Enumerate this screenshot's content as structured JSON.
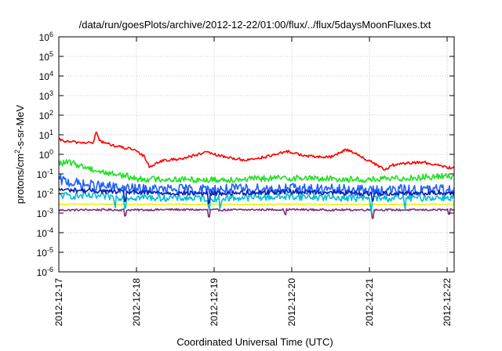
{
  "chart_data": {
    "type": "line",
    "title": "/data/run/goesPlots/archive/2012-12-22/01:00/flux/../flux/5daysMoonFluxes.txt",
    "xlabel": "Coordinated Universal Time (UTC)",
    "ylabel": {
      "base": "protons/cm",
      "sup": "2",
      "rest": "-s-sr-MeV"
    },
    "x_ticks": [
      "2012-12-17",
      "2012-12-18",
      "2012-12-19",
      "2012-12-20",
      "2012-12-21",
      "2012-12-22"
    ],
    "y_scale": "log",
    "ylim_exp": [
      -6,
      6
    ],
    "y_tick_exponents": [
      6,
      5,
      4,
      3,
      2,
      1,
      0,
      -1,
      -2,
      -3,
      -4,
      -5,
      -6
    ],
    "y_tick_base": "10",
    "grid": true,
    "series": [
      {
        "color": "#7f2f7f",
        "level": -2.83,
        "noise": 0.05,
        "spikes": [
          [
            0.86,
            -0.3
          ],
          [
            1.93,
            -0.35
          ],
          [
            2.91,
            -0.25
          ],
          [
            4.04,
            -0.4
          ],
          [
            5.02,
            -0.25
          ]
        ],
        "anchors": [
          [
            0.0,
            -2.85
          ],
          [
            0.5,
            -2.83
          ],
          [
            1.0,
            -2.84
          ],
          [
            1.5,
            -2.82
          ],
          [
            2.0,
            -2.84
          ],
          [
            2.5,
            -2.83
          ],
          [
            3.0,
            -2.82
          ],
          [
            3.5,
            -2.84
          ],
          [
            4.0,
            -2.83
          ],
          [
            4.5,
            -2.84
          ],
          [
            5.06,
            -2.83
          ]
        ]
      },
      {
        "color": "#f2f20a",
        "level": -2.55,
        "noise": 0.03,
        "spikes": [],
        "anchors": [
          [
            0.0,
            -2.55
          ],
          [
            1.0,
            -2.55
          ],
          [
            2.0,
            -2.56
          ],
          [
            3.0,
            -2.55
          ],
          [
            4.0,
            -2.56
          ],
          [
            5.06,
            -2.55
          ]
        ]
      },
      {
        "color": "#00bcd4",
        "level": -2.2,
        "noise": 0.18,
        "spikes": [
          [
            0.72,
            -0.4
          ],
          [
            0.86,
            -0.5
          ],
          [
            1.93,
            -0.6
          ],
          [
            2.08,
            -0.5
          ],
          [
            4.02,
            -0.55
          ],
          [
            4.45,
            -0.4
          ]
        ],
        "anchors": [
          [
            0.0,
            -2.1
          ],
          [
            1.0,
            -2.2
          ],
          [
            2.0,
            -2.25
          ],
          [
            3.0,
            -2.15
          ],
          [
            4.0,
            -2.25
          ],
          [
            5.06,
            -2.2
          ]
        ]
      },
      {
        "color": "#1f5fff",
        "level": -1.75,
        "noise": 0.28,
        "spikes": [],
        "anchors": [
          [
            0.0,
            -1.3
          ],
          [
            0.3,
            -1.55
          ],
          [
            1.0,
            -1.8
          ],
          [
            2.0,
            -1.8
          ],
          [
            3.0,
            -1.75
          ],
          [
            4.0,
            -1.85
          ],
          [
            5.06,
            -1.8
          ]
        ]
      },
      {
        "color": "#0a1fb0",
        "level": -1.95,
        "noise": 0.12,
        "spikes": [
          [
            0.86,
            -0.4
          ],
          [
            1.93,
            -0.5
          ],
          [
            4.04,
            -0.35
          ]
        ],
        "anchors": [
          [
            0.0,
            -1.8
          ],
          [
            1.0,
            -1.95
          ],
          [
            2.0,
            -2.0
          ],
          [
            3.0,
            -1.9
          ],
          [
            4.0,
            -2.0
          ],
          [
            5.06,
            -1.95
          ]
        ]
      },
      {
        "color": "#22e022",
        "level": -1.2,
        "noise": 0.16,
        "spikes": [],
        "anchors": [
          [
            0.0,
            -0.45
          ],
          [
            0.15,
            -0.42
          ],
          [
            0.3,
            -0.6
          ],
          [
            0.55,
            -0.9
          ],
          [
            0.8,
            -1.05
          ],
          [
            1.0,
            -1.25
          ],
          [
            2.0,
            -1.3
          ],
          [
            3.0,
            -1.2
          ],
          [
            4.0,
            -1.3
          ],
          [
            5.06,
            -1.1
          ]
        ]
      },
      {
        "color": "#ff0000",
        "level": 0.0,
        "noise": 0.07,
        "spikes": [],
        "anchors": [
          [
            0.0,
            0.75
          ],
          [
            0.1,
            0.65
          ],
          [
            0.3,
            0.6
          ],
          [
            0.45,
            0.6
          ],
          [
            0.48,
            1.2
          ],
          [
            0.52,
            0.7
          ],
          [
            0.7,
            0.45
          ],
          [
            0.95,
            0.25
          ],
          [
            1.1,
            -0.1
          ],
          [
            1.17,
            -0.65
          ],
          [
            1.3,
            -0.35
          ],
          [
            1.6,
            -0.2
          ],
          [
            1.9,
            0.1
          ],
          [
            2.1,
            -0.1
          ],
          [
            2.4,
            -0.3
          ],
          [
            2.7,
            -0.1
          ],
          [
            2.95,
            0.15
          ],
          [
            3.2,
            -0.1
          ],
          [
            3.5,
            -0.15
          ],
          [
            3.6,
            0.05
          ],
          [
            3.7,
            0.25
          ],
          [
            3.8,
            0.1
          ],
          [
            3.95,
            -0.25
          ],
          [
            4.1,
            -0.55
          ],
          [
            4.2,
            -0.8
          ],
          [
            4.3,
            -0.55
          ],
          [
            4.5,
            -0.45
          ],
          [
            4.7,
            -0.4
          ],
          [
            4.85,
            -0.55
          ],
          [
            5.06,
            -0.7
          ]
        ]
      }
    ]
  }
}
